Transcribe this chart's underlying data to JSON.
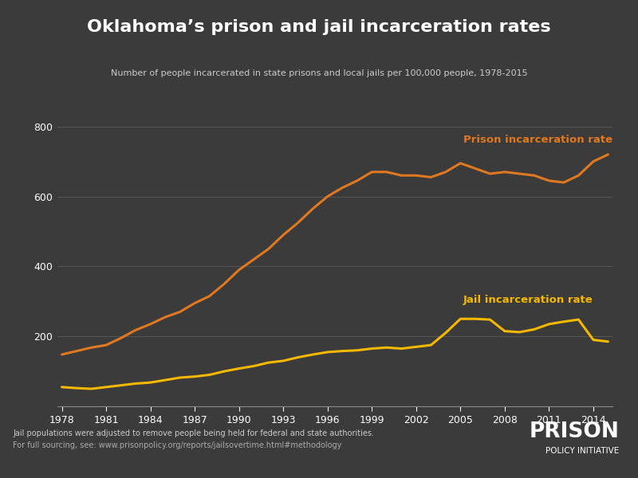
{
  "title": "Oklahoma’s prison and jail incarceration rates",
  "subtitle": "Number of people incarcerated in state prisons and local jails per 100,000 people, 1978-2015",
  "footnote1": "Jail populations were adjusted to remove people being held for federal and state authorities.",
  "footnote2": "For full sourcing, see: www.prisonpolicy.org/reports/jailsovertime.html#methodology",
  "logo_text1": "PRISON",
  "logo_text2": "POLICY INITIATIVE",
  "background_color": "#3b3b3b",
  "text_color": "#ffffff",
  "grid_color": "#555555",
  "prison_color": "#e07820",
  "jail_color": "#f5b800",
  "prison_label": "Prison incarceration rate",
  "jail_label": "Jail incarceration rate",
  "xlim": [
    1978,
    2015
  ],
  "ylim": [
    0,
    820
  ],
  "yticks": [
    0,
    200,
    400,
    600,
    800
  ],
  "xticks": [
    1978,
    1981,
    1984,
    1987,
    1990,
    1993,
    1996,
    1999,
    2002,
    2005,
    2008,
    2011,
    2014
  ],
  "prison_years": [
    1978,
    1979,
    1980,
    1981,
    1982,
    1983,
    1984,
    1985,
    1986,
    1987,
    1988,
    1989,
    1990,
    1991,
    1992,
    1993,
    1994,
    1995,
    1996,
    1997,
    1998,
    1999,
    2000,
    2001,
    2002,
    2003,
    2004,
    2005,
    2006,
    2007,
    2008,
    2009,
    2010,
    2011,
    2012,
    2013,
    2014,
    2015
  ],
  "prison_values": [
    148,
    158,
    168,
    175,
    195,
    218,
    235,
    255,
    270,
    295,
    315,
    350,
    390,
    420,
    450,
    490,
    525,
    565,
    600,
    625,
    645,
    670,
    670,
    660,
    660,
    655,
    670,
    695,
    680,
    665,
    670,
    665,
    660,
    645,
    640,
    660,
    700,
    720
  ],
  "jail_years": [
    1978,
    1979,
    1980,
    1981,
    1982,
    1983,
    1984,
    1985,
    1986,
    1987,
    1988,
    1989,
    1990,
    1991,
    1992,
    1993,
    1994,
    1995,
    1996,
    1997,
    1998,
    1999,
    2000,
    2001,
    2002,
    2003,
    2004,
    2005,
    2006,
    2007,
    2008,
    2009,
    2010,
    2011,
    2012,
    2013,
    2014,
    2015
  ],
  "jail_values": [
    55,
    52,
    50,
    55,
    60,
    65,
    68,
    75,
    82,
    85,
    90,
    100,
    108,
    115,
    125,
    130,
    140,
    148,
    155,
    158,
    160,
    165,
    168,
    165,
    170,
    175,
    210,
    250,
    250,
    248,
    215,
    212,
    220,
    235,
    242,
    248,
    190,
    185
  ]
}
